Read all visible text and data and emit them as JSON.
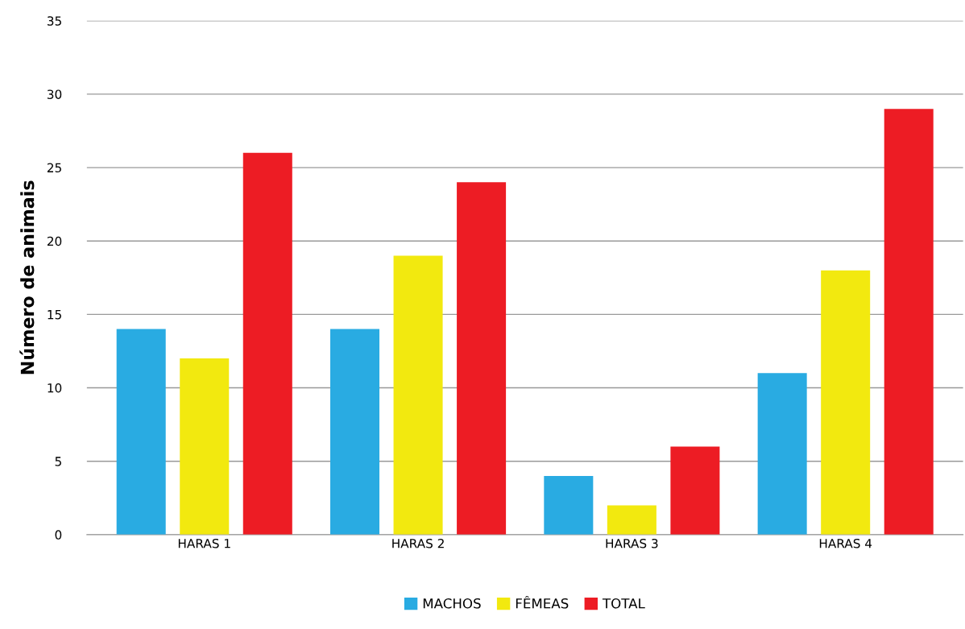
{
  "chart_data": {
    "type": "bar",
    "ylabel": "Número de animais",
    "categories": [
      "HARAS 1",
      "HARAS 2",
      "HARAS 3",
      "HARAS 4"
    ],
    "series": [
      {
        "name": "MACHOS",
        "color": "#29abe2",
        "values": [
          14,
          14,
          4,
          11
        ]
      },
      {
        "name": "FÊMEAS",
        "color": "#f2e90f",
        "values": [
          12,
          19,
          2,
          18
        ]
      },
      {
        "name": "TOTAL",
        "color": "#ed1c24",
        "values": [
          26,
          24,
          6,
          29
        ]
      }
    ],
    "ylim": [
      0,
      35
    ],
    "yticks": [
      0,
      5,
      10,
      15,
      20,
      25,
      30,
      35
    ],
    "grid": "y",
    "legend": "bottom"
  }
}
